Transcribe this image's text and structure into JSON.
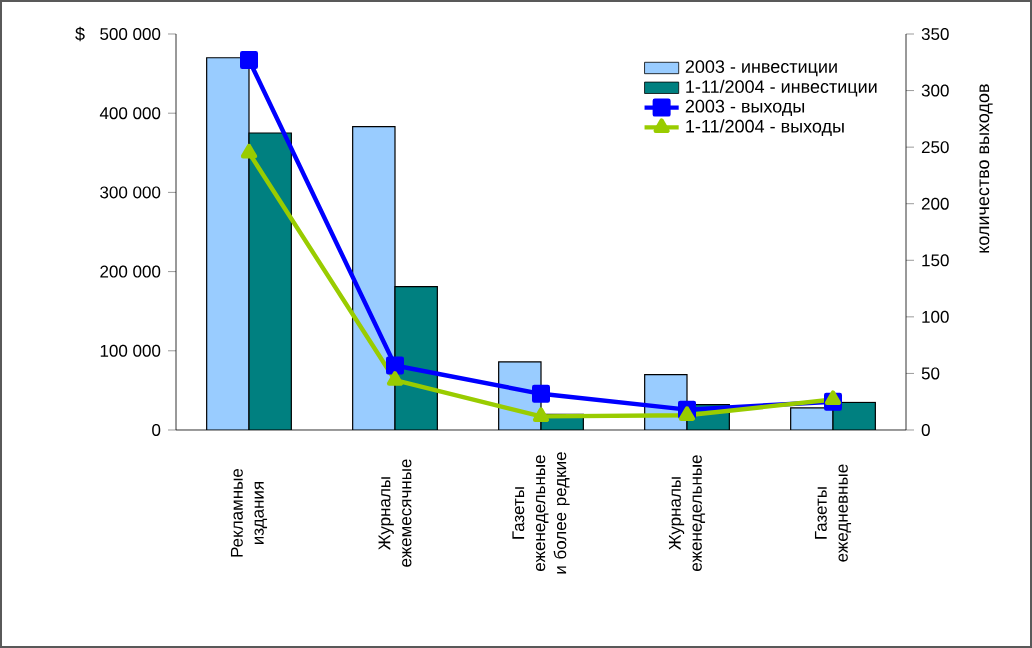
{
  "chart_data": {
    "type": "bar",
    "ylabel": "$",
    "y2label": "количество выходов",
    "categories": [
      "Рекламные издания",
      "Журналы ежемесячные",
      "Газеты еженедельные и более редкие",
      "Журналы еженедельные",
      "Газеты ежедневные"
    ],
    "series": [
      {
        "name": "2003 - инвестиции",
        "color": "#99ccff",
        "values": [
          470000,
          383000,
          86000,
          70000,
          28000
        ]
      },
      {
        "name": "1-11/2004 - инвестиции",
        "color": "#008080",
        "values": [
          375000,
          181000,
          20000,
          32000,
          35000
        ]
      },
      {
        "name": "2003 - выходы",
        "type": "line",
        "axis": "y2",
        "marker": "square",
        "color": "#0000ff",
        "values": [
          327,
          57,
          32,
          18,
          25
        ]
      },
      {
        "name": "1-11/2004 - выходы",
        "type": "line",
        "axis": "y2",
        "marker": "triangle",
        "color": "#99cc00",
        "values": [
          245,
          44,
          12,
          13,
          27
        ]
      }
    ],
    "ylim": [
      0,
      500000
    ],
    "yticks": [
      {
        "value": 0,
        "label": "0"
      },
      {
        "value": 100000,
        "label": "100 000"
      },
      {
        "value": 200000,
        "label": "200 000"
      },
      {
        "value": 300000,
        "label": "300 000"
      },
      {
        "value": 400000,
        "label": "400 000"
      },
      {
        "value": 500000,
        "label": "500 000"
      }
    ],
    "y2lim": [
      0,
      350
    ],
    "y2ticks": [
      0,
      50,
      100,
      150,
      200,
      250,
      300,
      350
    ],
    "legend": "top right"
  }
}
